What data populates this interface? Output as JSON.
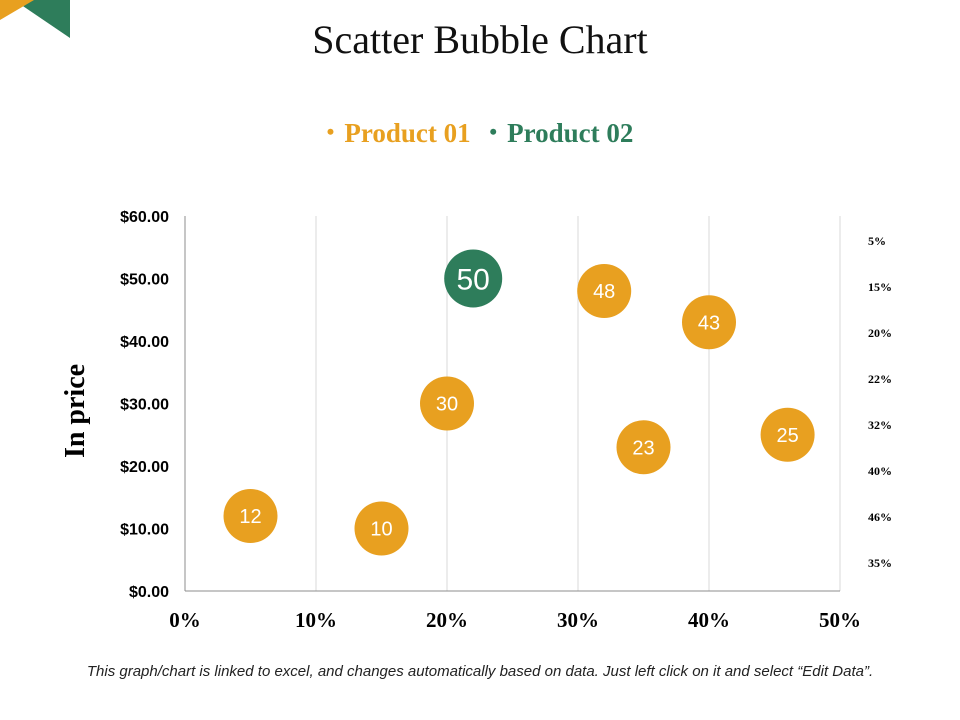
{
  "title": "Scatter Bubble Chart",
  "legend": [
    {
      "label": "Product 01",
      "color": "#E8A020"
    },
    {
      "label": "Product 02",
      "color": "#2E7D5B"
    }
  ],
  "footnote": "This graph/chart is linked to excel, and changes automatically based on data. Just left click on it and select “Edit Data”.",
  "chart_data": {
    "type": "scatter",
    "title": "Scatter Bubble Chart",
    "xlabel": "",
    "ylabel": "In price",
    "xlim": [
      0,
      50
    ],
    "ylim": [
      0,
      60
    ],
    "x_ticks": [
      "0%",
      "10%",
      "20%",
      "30%",
      "40%",
      "50%"
    ],
    "y_ticks": [
      "$0.00",
      "$10.00",
      "$20.00",
      "$30.00",
      "$40.00",
      "$50.00",
      "$60.00"
    ],
    "grid": "vertical",
    "legend_position": "top",
    "right_labels": [
      "5%",
      "15%",
      "20%",
      "22%",
      "32%",
      "40%",
      "46%",
      "35%"
    ],
    "series": [
      {
        "name": "Product 01",
        "color": "#E8A020",
        "points": [
          {
            "x": 5,
            "y": 12,
            "label": "12"
          },
          {
            "x": 15,
            "y": 10,
            "label": "10"
          },
          {
            "x": 20,
            "y": 30,
            "label": "30"
          },
          {
            "x": 32,
            "y": 48,
            "label": "48"
          },
          {
            "x": 35,
            "y": 23,
            "label": "23"
          },
          {
            "x": 40,
            "y": 43,
            "label": "43"
          },
          {
            "x": 46,
            "y": 25,
            "label": "25"
          }
        ]
      },
      {
        "name": "Product 02",
        "color": "#2E7D5B",
        "points": [
          {
            "x": 22,
            "y": 50,
            "label": "50"
          }
        ]
      }
    ]
  }
}
